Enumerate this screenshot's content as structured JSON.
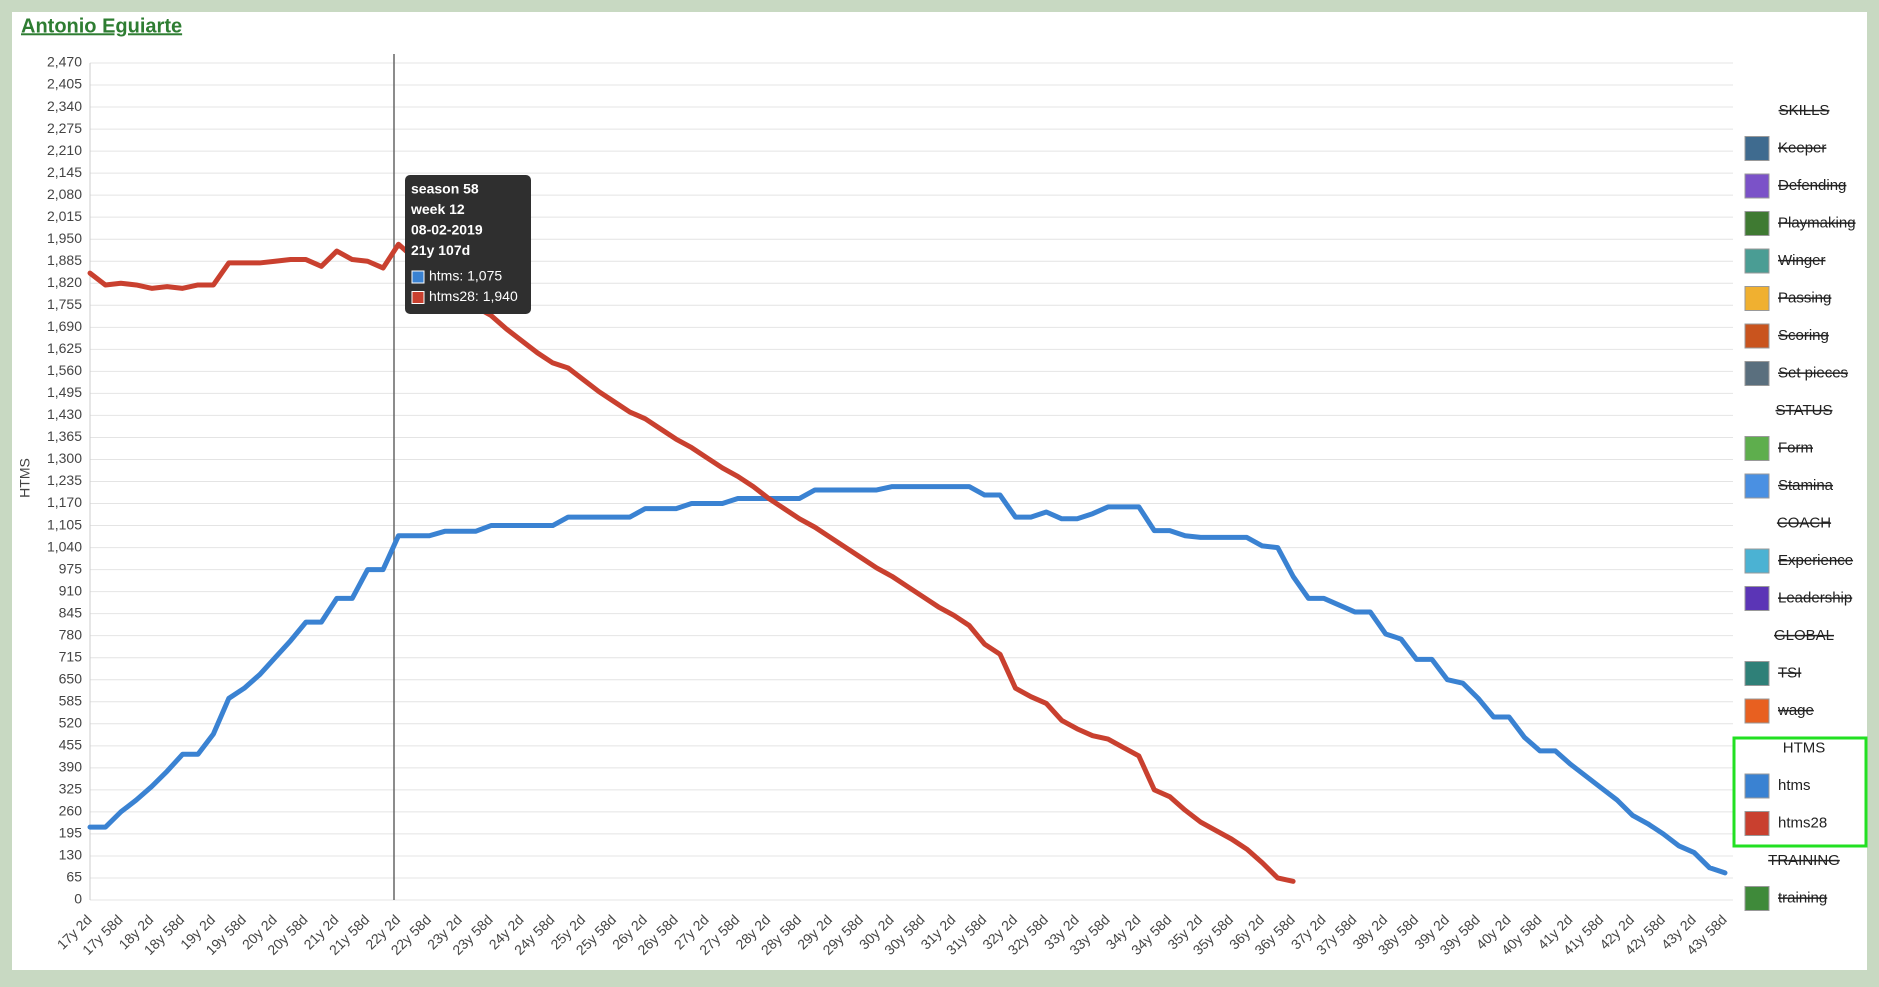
{
  "header": {
    "title": "Antonio Eguiarte"
  },
  "chart_data": {
    "type": "line",
    "ylabel": "HTMS",
    "categories": [
      "17y 2d",
      null,
      "17y 58d",
      null,
      "18y 2d",
      null,
      "18y 58d",
      null,
      "19y 2d",
      null,
      "19y 58d",
      null,
      "20y 2d",
      null,
      "20y 58d",
      null,
      "21y 2d",
      null,
      "21y 58d",
      null,
      "22y 2d",
      null,
      "22y 58d",
      null,
      "23y 2d",
      null,
      "23y 58d",
      null,
      "24y 2d",
      null,
      "24y 58d",
      null,
      "25y 2d",
      null,
      "25y 58d",
      null,
      "26y 2d",
      null,
      "26y 58d",
      null,
      "27y 2d",
      null,
      "27y 58d",
      null,
      "28y 2d",
      null,
      "28y 58d",
      null,
      "29y 2d",
      null,
      "29y 58d",
      null,
      "30y 2d",
      null,
      "30y 58d",
      null,
      "31y 2d",
      null,
      "31y 58d",
      null,
      "32y 2d",
      null,
      "32y 58d",
      null,
      "33y 2d",
      null,
      "33y 58d",
      null,
      "34y 2d",
      null,
      "34y 58d",
      null,
      "35y 2d",
      null,
      "35y 58d",
      null,
      "36y 2d",
      null,
      "36y 58d",
      null,
      "37y 2d",
      null,
      "37y 58d",
      null,
      "38y 2d",
      null,
      "38y 58d",
      null,
      "39y 2d",
      null,
      "39y 58d",
      null,
      "40y 2d",
      null,
      "40y 58d",
      null,
      "41y 2d",
      null,
      "41y 58d",
      null,
      "42y 2d",
      null,
      "42y 58d",
      null,
      "43y 2d",
      null,
      "43y 58d"
    ],
    "series": [
      {
        "name": "htms",
        "color": "#3a82d2",
        "values": [
          215,
          215,
          260,
          295,
          335,
          380,
          430,
          430,
          490,
          595,
          625,
          665,
          715,
          765,
          820,
          820,
          890,
          890,
          975,
          975,
          1075,
          1075,
          1075,
          1088,
          1088,
          1088,
          1105,
          1105,
          1105,
          1105,
          1105,
          1130,
          1130,
          1130,
          1130,
          1130,
          1155,
          1155,
          1155,
          1170,
          1170,
          1170,
          1185,
          1185,
          1185,
          1185,
          1185,
          1210,
          1210,
          1210,
          1210,
          1210,
          1220,
          1220,
          1220,
          1220,
          1220,
          1220,
          1195,
          1195,
          1130,
          1130,
          1145,
          1125,
          1125,
          1140,
          1160,
          1160,
          1160,
          1090,
          1090,
          1075,
          1070,
          1070,
          1070,
          1070,
          1045,
          1040,
          955,
          890,
          890,
          870,
          850,
          850,
          785,
          770,
          710,
          710,
          650,
          640,
          595,
          540,
          540,
          480,
          440,
          440,
          400,
          365,
          330,
          295,
          250,
          225,
          195,
          160,
          140,
          95,
          80
        ]
      },
      {
        "name": "htms28",
        "color": "#c9402f",
        "values": [
          1850,
          1815,
          1820,
          1815,
          1805,
          1810,
          1805,
          1815,
          1815,
          1880,
          1880,
          1880,
          1885,
          1890,
          1890,
          1870,
          1915,
          1890,
          1885,
          1865,
          1935,
          1895,
          1855,
          1820,
          1785,
          1750,
          1725,
          1685,
          1650,
          1615,
          1585,
          1570,
          1535,
          1500,
          1470,
          1440,
          1420,
          1390,
          1360,
          1335,
          1305,
          1275,
          1250,
          1220,
          1185,
          1155,
          1125,
          1100,
          1070,
          1040,
          1010,
          980,
          955,
          925,
          895,
          865,
          840,
          810,
          755,
          725,
          625,
          600,
          580,
          530,
          505,
          485,
          475,
          450,
          425,
          325,
          305,
          265,
          230,
          205,
          180,
          150,
          110,
          65,
          55,
          null,
          null,
          null,
          null,
          null,
          null,
          null,
          null,
          null,
          null,
          null,
          null,
          null,
          null,
          null,
          null,
          null,
          null,
          null,
          null,
          null,
          null,
          null,
          null,
          null,
          null,
          null,
          null
        ]
      }
    ],
    "ylim": [
      0,
      2470
    ],
    "yticks": [
      0,
      65,
      130,
      195,
      260,
      325,
      390,
      455,
      520,
      585,
      650,
      715,
      780,
      845,
      910,
      975,
      {
        "value": 1040,
        "label": "1,040"
      },
      {
        "value": 1105,
        "label": "1,105"
      },
      {
        "value": 1170,
        "label": "1,170"
      },
      {
        "value": 1235,
        "label": "1,235"
      },
      {
        "value": 1300,
        "label": "1,300"
      },
      {
        "value": 1365,
        "label": "1,365"
      },
      {
        "value": 1430,
        "label": "1,430"
      },
      {
        "value": 1495,
        "label": "1,495"
      },
      {
        "value": 1560,
        "label": "1,560"
      },
      {
        "value": 1625,
        "label": "1,625"
      },
      {
        "value": 1690,
        "label": "1,690"
      },
      {
        "value": 1755,
        "label": "1,755"
      },
      {
        "value": 1820,
        "label": "1,820"
      },
      {
        "value": 1885,
        "label": "1,885"
      },
      {
        "value": 1950,
        "label": "1,950"
      },
      {
        "value": 2015,
        "label": "2,015"
      },
      {
        "value": 2080,
        "label": "2,080"
      },
      {
        "value": 2145,
        "label": "2,145"
      },
      {
        "value": 2210,
        "label": "2,210"
      },
      {
        "value": 2275,
        "label": "2,275"
      },
      {
        "value": 2340,
        "label": "2,340"
      },
      {
        "value": 2405,
        "label": "2,405"
      },
      {
        "value": 2470,
        "label": "2,470"
      }
    ],
    "grid": true,
    "legend_position": "right",
    "legend_groups": [
      {
        "title": "SKILLS",
        "visible": false,
        "items": [
          {
            "name": "Keeper",
            "color": "#3f6b8f",
            "visible": false
          },
          {
            "name": "Defending",
            "color": "#7b52c8",
            "visible": false
          },
          {
            "name": "Playmaking",
            "color": "#3f7a32",
            "visible": false
          },
          {
            "name": "Winger",
            "color": "#4a9d94",
            "visible": false
          },
          {
            "name": "Passing",
            "color": "#f0b030",
            "visible": false
          },
          {
            "name": "Scoring",
            "color": "#c9541e",
            "visible": false
          },
          {
            "name": "Set pieces",
            "color": "#5a6f7e",
            "visible": false
          }
        ]
      },
      {
        "title": "STATUS",
        "visible": false,
        "items": [
          {
            "name": "Form",
            "color": "#5eae4d",
            "visible": false
          },
          {
            "name": "Stamina",
            "color": "#4a90e2",
            "visible": false
          }
        ]
      },
      {
        "title": "COACH",
        "visible": false,
        "items": [
          {
            "name": "Experience",
            "color": "#4bb2d3",
            "visible": false
          },
          {
            "name": "Leadership",
            "color": "#5b35b6",
            "visible": false
          }
        ]
      },
      {
        "title": "GLOBAL",
        "visible": false,
        "items": [
          {
            "name": "TSI",
            "color": "#2f8078",
            "visible": false
          },
          {
            "name": "wage",
            "color": "#e86020",
            "visible": false
          }
        ]
      },
      {
        "title": "HTMS",
        "visible": true
      },
      {
        "title": "TRAINING",
        "visible": false,
        "items": [
          {
            "name": "training",
            "color": "#3f8a3a",
            "visible": false
          }
        ]
      }
    ],
    "tooltip": {
      "lines": [
        "season 58",
        "week 12",
        "08-02-2019",
        "21y 107d"
      ],
      "entries": [
        "htms: 1,075",
        "htms28: 1,940"
      ]
    }
  }
}
